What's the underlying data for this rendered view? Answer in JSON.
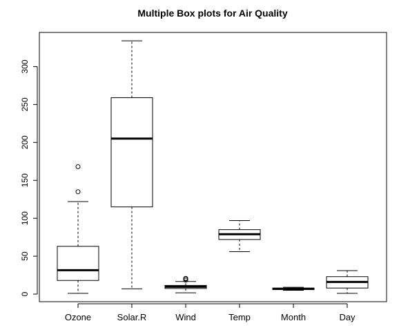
{
  "chart_data": {
    "type": "boxplot",
    "title": "Multiple Box plots for Air Quality",
    "xlabel": "",
    "ylabel": "",
    "ylim": [
      -10,
      345
    ],
    "yticks": [
      0,
      50,
      100,
      150,
      200,
      250,
      300
    ],
    "grid": false,
    "legend": "none",
    "categories": [
      "Ozone",
      "Solar.R",
      "Wind",
      "Temp",
      "Month",
      "Day"
    ],
    "boxes": [
      {
        "name": "Ozone",
        "whisker_low": 1,
        "q1": 18,
        "median": 31.5,
        "q3": 63,
        "whisker_high": 122,
        "outliers": [
          135,
          168
        ]
      },
      {
        "name": "Solar.R",
        "whisker_low": 7,
        "q1": 115,
        "median": 205,
        "q3": 259,
        "whisker_high": 334,
        "outliers": []
      },
      {
        "name": "Wind",
        "whisker_low": 1.7,
        "q1": 7.4,
        "median": 9.7,
        "q3": 11.5,
        "whisker_high": 16.6,
        "outliers": [
          20.1,
          18.4,
          20.7
        ]
      },
      {
        "name": "Temp",
        "whisker_low": 56,
        "q1": 72,
        "median": 79,
        "q3": 85,
        "whisker_high": 97,
        "outliers": []
      },
      {
        "name": "Month",
        "whisker_low": 5,
        "q1": 6,
        "median": 7,
        "q3": 8,
        "whisker_high": 9,
        "outliers": []
      },
      {
        "name": "Day",
        "whisker_low": 1,
        "q1": 8,
        "median": 16,
        "q3": 23,
        "whisker_high": 31,
        "outliers": []
      }
    ],
    "colors": {
      "stroke": "#000000",
      "box_fill": "#ffffff"
    }
  }
}
